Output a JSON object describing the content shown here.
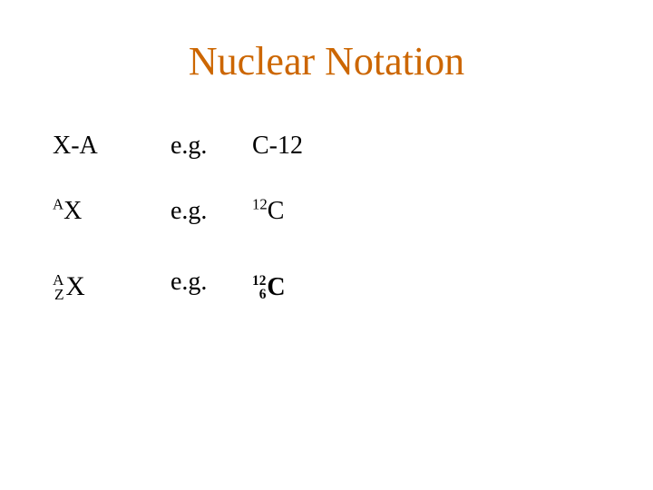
{
  "title": {
    "text": "Nuclear Notation",
    "color": "#cc6600",
    "fontsize": 44
  },
  "content": {
    "fontsize": 28,
    "text_color": "#000000",
    "rows": [
      {
        "notation": {
          "type": "plain",
          "text": "X-A"
        },
        "eg": "e.g.",
        "example": {
          "type": "plain",
          "text": "C-12"
        }
      },
      {
        "notation": {
          "type": "supX",
          "sup": "A",
          "base": "X"
        },
        "eg": "e.g.",
        "example": {
          "type": "supX",
          "sup": "12",
          "base": "C"
        }
      },
      {
        "notation": {
          "type": "azx",
          "top": "A",
          "bottom": "Z",
          "base": "X"
        },
        "eg": "e.g.",
        "example": {
          "type": "azx_bold",
          "top": "12",
          "bottom": "6",
          "base": "C"
        }
      }
    ]
  }
}
